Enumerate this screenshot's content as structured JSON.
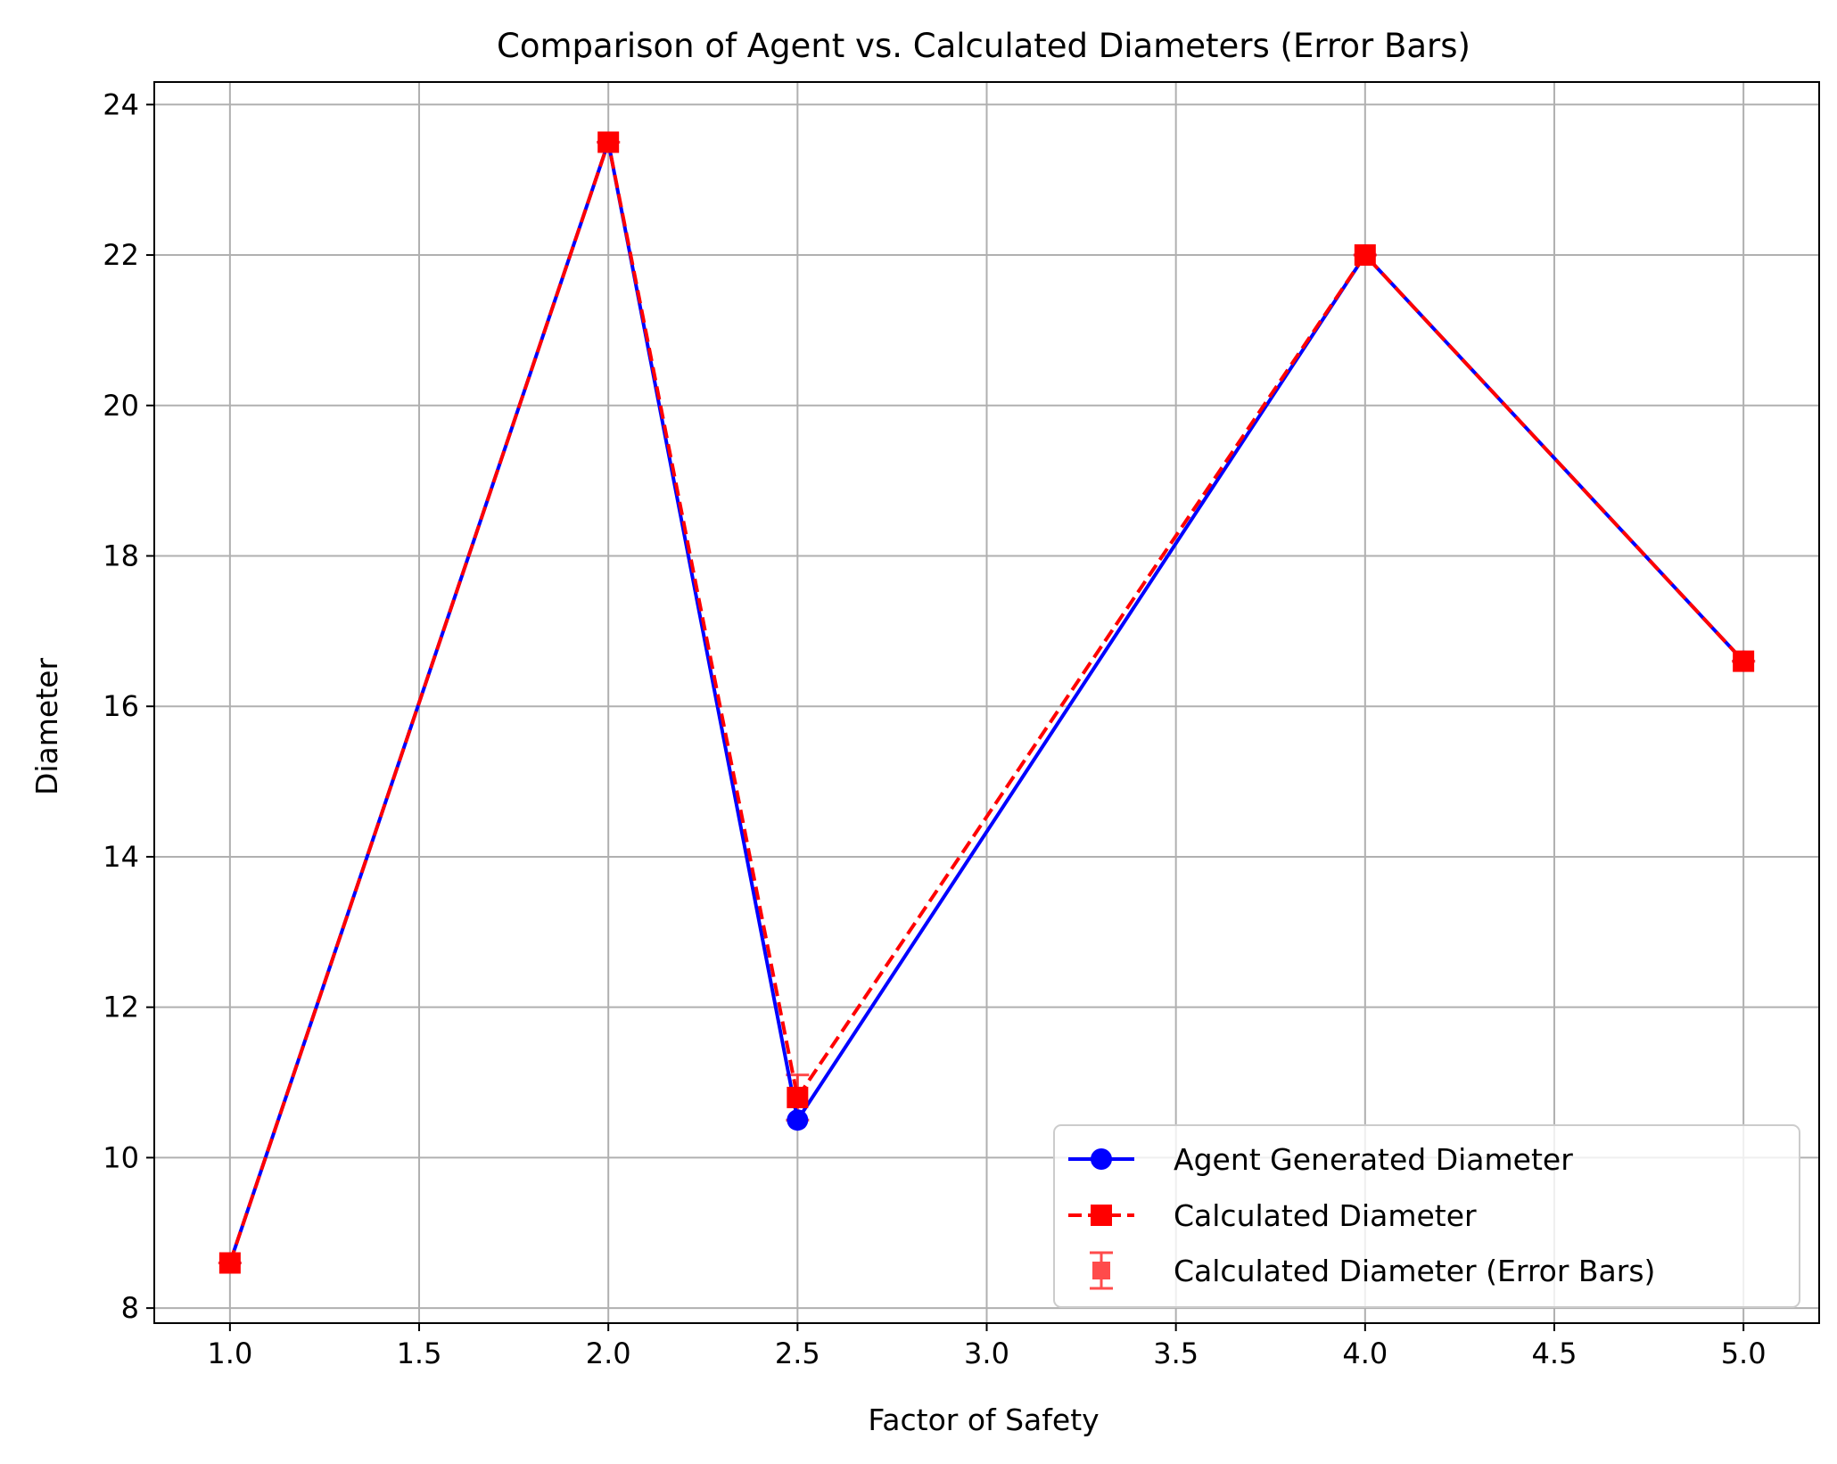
{
  "chart_data": {
    "type": "line",
    "title": "Comparison of Agent vs. Calculated Diameters (Error Bars)",
    "xlabel": "Factor of Safety",
    "ylabel": "Diameter",
    "xlim": [
      0.8,
      5.2
    ],
    "ylim": [
      7.8,
      24.3
    ],
    "xticks": [
      1.0,
      1.5,
      2.0,
      2.5,
      3.0,
      3.5,
      4.0,
      4.5,
      5.0
    ],
    "xtick_labels": [
      "1.0",
      "1.5",
      "2.0",
      "2.5",
      "3.0",
      "3.5",
      "4.0",
      "4.5",
      "5.0"
    ],
    "yticks": [
      8,
      10,
      12,
      14,
      16,
      18,
      20,
      22,
      24
    ],
    "ytick_labels": [
      "8",
      "10",
      "12",
      "14",
      "16",
      "18",
      "20",
      "22",
      "24"
    ],
    "grid": true,
    "legend_position": "lower-right",
    "x": [
      1.0,
      2.0,
      2.5,
      4.0,
      5.0
    ],
    "series": [
      {
        "name": "Agent Generated Diameter",
        "values": [
          8.6,
          23.5,
          10.5,
          22.0,
          16.6
        ],
        "color": "#0000ff",
        "line_style": "solid",
        "marker": "circle"
      },
      {
        "name": "Calculated Diameter",
        "values": [
          8.6,
          23.5,
          10.8,
          22.0,
          16.6
        ],
        "color": "#ff0000",
        "line_style": "dashed",
        "marker": "square"
      }
    ],
    "error_bars": {
      "name": "Calculated Diameter (Error Bars)",
      "values": [
        8.6,
        23.5,
        10.8,
        22.0,
        16.6
      ],
      "errors": [
        0.0,
        0.0,
        0.3,
        0.0,
        0.0
      ],
      "color": "#ff0000",
      "marker": "square"
    }
  }
}
